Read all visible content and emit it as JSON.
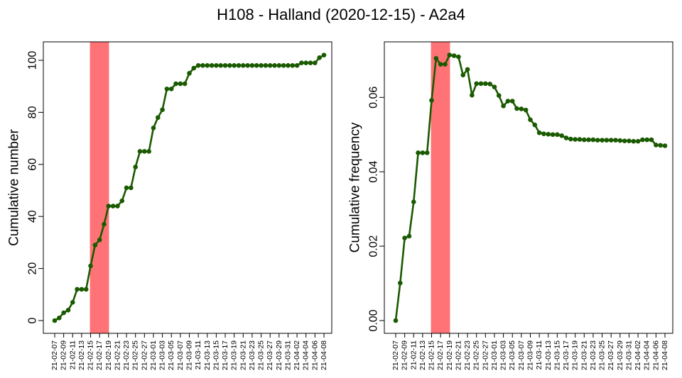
{
  "title": "H108 - Halland (2020-12-15) - A2a4",
  "colors": {
    "line": "#1a5a00",
    "point": "#1a5a00",
    "highlight": "#ff7377",
    "axis": "#000000",
    "frame": "#000000"
  },
  "chart_data": [
    {
      "type": "line",
      "title": "",
      "xlabel": "",
      "ylabel": "Cumulative number",
      "ylim": [
        0,
        103
      ],
      "y_ticks": [
        0,
        20,
        40,
        60,
        80,
        100
      ],
      "y_tick_labels": [
        "0",
        "20",
        "40",
        "60",
        "80",
        "100"
      ],
      "highlight_band": {
        "from": "2021-02-15",
        "to": "2021-02-19"
      },
      "x_tick_labels": [
        "21-02-07",
        "21-02-09",
        "21-02-11",
        "21-02-13",
        "21-02-15",
        "21-02-17",
        "21-02-19",
        "21-02-21",
        "21-02-23",
        "21-02-25",
        "21-02-27",
        "21-03-01",
        "21-03-03",
        "21-03-05",
        "21-03-07",
        "21-03-09",
        "21-03-11",
        "21-03-13",
        "21-03-15",
        "21-03-17",
        "21-03-19",
        "21-03-21",
        "21-03-23",
        "21-03-25",
        "21-03-27",
        "21-03-29",
        "21-03-31",
        "21-04-02",
        "21-04-04",
        "21-04-06",
        "21-04-08"
      ],
      "series": [
        {
          "x": [
            "2021-02-07",
            "2021-02-08",
            "2021-02-09",
            "2021-02-10",
            "2021-02-11",
            "2021-02-12",
            "2021-02-13",
            "2021-02-14",
            "2021-02-15",
            "2021-02-16",
            "2021-02-17",
            "2021-02-18",
            "2021-02-19",
            "2021-02-20",
            "2021-02-21",
            "2021-02-22",
            "2021-02-23",
            "2021-02-24",
            "2021-02-25",
            "2021-02-26",
            "2021-02-27",
            "2021-02-28",
            "2021-03-01",
            "2021-03-02",
            "2021-03-03",
            "2021-03-04",
            "2021-03-05",
            "2021-03-06",
            "2021-03-07",
            "2021-03-08",
            "2021-03-09",
            "2021-03-10",
            "2021-03-11",
            "2021-03-12",
            "2021-03-13",
            "2021-03-14",
            "2021-03-15",
            "2021-03-16",
            "2021-03-17",
            "2021-03-18",
            "2021-03-19",
            "2021-03-20",
            "2021-03-21",
            "2021-03-22",
            "2021-03-23",
            "2021-03-24",
            "2021-03-25",
            "2021-03-26",
            "2021-03-27",
            "2021-03-28",
            "2021-03-29",
            "2021-03-30",
            "2021-03-31",
            "2021-04-01",
            "2021-04-02",
            "2021-04-03",
            "2021-04-04",
            "2021-04-05",
            "2021-04-06",
            "2021-04-07",
            "2021-04-08"
          ],
          "y": [
            0,
            1,
            3,
            4,
            7,
            12,
            12,
            12,
            21,
            29,
            31,
            37,
            44,
            44,
            44,
            46,
            51,
            51,
            59,
            65,
            65,
            65,
            74,
            78,
            81,
            89,
            89,
            91,
            91,
            91,
            95,
            97,
            98,
            98,
            98,
            98,
            98,
            98,
            98,
            98,
            98,
            98,
            98,
            98,
            98,
            98,
            98,
            98,
            98,
            98,
            98,
            98,
            98,
            98,
            98,
            99,
            99,
            99,
            99,
            101,
            102
          ]
        }
      ]
    },
    {
      "type": "line",
      "title": "",
      "xlabel": "",
      "ylabel": "Cumulative frequency",
      "ylim": [
        0,
        0.0715
      ],
      "y_ticks": [
        0,
        0.02,
        0.04,
        0.06
      ],
      "y_tick_labels": [
        "0.00",
        "0.02",
        "0.04",
        "0.06"
      ],
      "highlight_band": {
        "from": "2021-02-15",
        "to": "2021-02-19"
      },
      "x_tick_labels": [
        "21-02-07",
        "21-02-09",
        "21-02-11",
        "21-02-13",
        "21-02-15",
        "21-02-17",
        "21-02-19",
        "21-02-21",
        "21-02-23",
        "21-02-25",
        "21-02-27",
        "21-03-01",
        "21-03-03",
        "21-03-05",
        "21-03-07",
        "21-03-09",
        "21-03-11",
        "21-03-13",
        "21-03-15",
        "21-03-17",
        "21-03-19",
        "21-03-21",
        "21-03-23",
        "21-03-25",
        "21-03-27",
        "21-03-29",
        "21-03-31",
        "21-04-02",
        "21-04-04",
        "21-04-06",
        "21-04-08"
      ],
      "series": [
        {
          "x": [
            "2021-02-07",
            "2021-02-08",
            "2021-02-09",
            "2021-02-10",
            "2021-02-11",
            "2021-02-12",
            "2021-02-13",
            "2021-02-14",
            "2021-02-15",
            "2021-02-16",
            "2021-02-17",
            "2021-02-18",
            "2021-02-19",
            "2021-02-20",
            "2021-02-21",
            "2021-02-22",
            "2021-02-23",
            "2021-02-24",
            "2021-02-25",
            "2021-02-26",
            "2021-02-27",
            "2021-02-28",
            "2021-03-01",
            "2021-03-02",
            "2021-03-03",
            "2021-03-04",
            "2021-03-05",
            "2021-03-06",
            "2021-03-07",
            "2021-03-08",
            "2021-03-09",
            "2021-03-10",
            "2021-03-11",
            "2021-03-12",
            "2021-03-13",
            "2021-03-14",
            "2021-03-15",
            "2021-03-16",
            "2021-03-17",
            "2021-03-18",
            "2021-03-19",
            "2021-03-20",
            "2021-03-21",
            "2021-03-22",
            "2021-03-23",
            "2021-03-24",
            "2021-03-25",
            "2021-03-26",
            "2021-03-27",
            "2021-03-28",
            "2021-03-29",
            "2021-03-30",
            "2021-03-31",
            "2021-04-01",
            "2021-04-02",
            "2021-04-03",
            "2021-04-04",
            "2021-04-05",
            "2021-04-06",
            "2021-04-07",
            "2021-04-08"
          ],
          "y": [
            0,
            0.0101,
            0.0222,
            0.0227,
            0.0319,
            0.0451,
            0.0451,
            0.0451,
            0.0592,
            0.0705,
            0.0689,
            0.0689,
            0.0714,
            0.0712,
            0.0709,
            0.066,
            0.0675,
            0.0606,
            0.0637,
            0.0637,
            0.0637,
            0.0636,
            0.0628,
            0.0605,
            0.0577,
            0.059,
            0.059,
            0.057,
            0.0569,
            0.0566,
            0.054,
            0.0526,
            0.0505,
            0.0502,
            0.0501,
            0.05,
            0.05,
            0.0497,
            0.0491,
            0.0488,
            0.0487,
            0.0487,
            0.0486,
            0.0486,
            0.0486,
            0.0485,
            0.0485,
            0.0485,
            0.0485,
            0.0485,
            0.0484,
            0.0483,
            0.0483,
            0.0482,
            0.0482,
            0.0486,
            0.0486,
            0.0486,
            0.0472,
            0.0471,
            0.047
          ]
        }
      ]
    }
  ]
}
